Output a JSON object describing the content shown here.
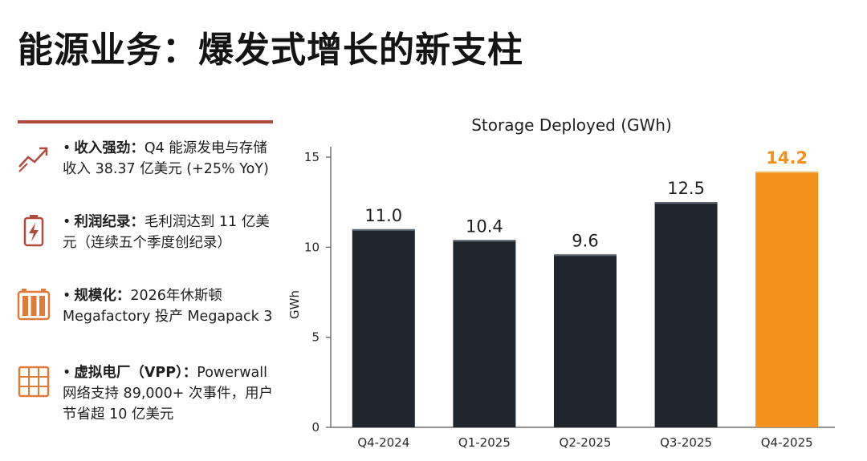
{
  "title": "能源业务：爆发式增长的新支柱",
  "bullets": [
    {
      "icon": "trend-up-arrow-icon",
      "head": "收入强劲：",
      "text": "Q4 能源发电与存储收入 38.37 亿美元 (+25% YoY)"
    },
    {
      "icon": "battery-charging-icon",
      "head": "利润纪录：",
      "text": "毛利润达到 11 亿美元（连续五个季度创纪录）"
    },
    {
      "icon": "battery-cells-icon",
      "head": "规模化：",
      "text": "2026年休斯顿 Megafactory 投产 Megapack 3"
    },
    {
      "icon": "grid-panel-icon",
      "head": "虚拟电厂（VPP）：",
      "text": "Powerwall 网络支持 89,000+ 次事件，用户节省超 10 亿美元"
    }
  ],
  "colors": {
    "accent": "#b04a3c",
    "bar": "#20262d",
    "highlight": "#f2911b"
  },
  "chart_data": {
    "type": "bar",
    "title": "Storage Deployed (GWh)",
    "ylabel": "GWh",
    "xlabel": "",
    "categories": [
      "Q4-2024",
      "Q1-2025",
      "Q2-2025",
      "Q3-2025",
      "Q4-2025"
    ],
    "values": [
      11.0,
      10.4,
      9.6,
      12.5,
      14.2
    ],
    "value_labels": [
      "11.0",
      "10.4",
      "9.6",
      "12.5",
      "14.2"
    ],
    "highlight_index": 4,
    "ylim": [
      0,
      15
    ],
    "yticks": [
      0,
      5,
      10,
      15
    ],
    "grid": false,
    "legend": "none"
  }
}
